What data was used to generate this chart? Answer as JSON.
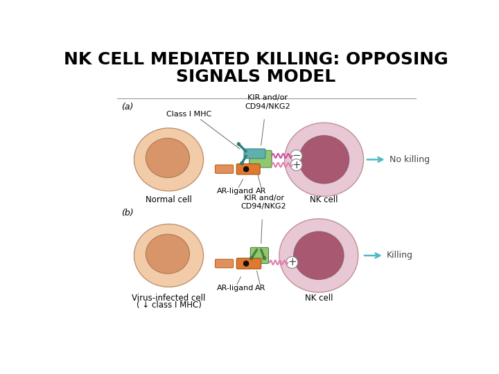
{
  "title_line1": "NK CELL MEDIATED KILLING: OPPOSING",
  "title_line2": "SIGNALS MODEL",
  "title_fontsize": 18,
  "title_fontweight": "bold",
  "bg_color": "#ffffff",
  "panel_a_label": "(a)",
  "panel_b_label": "(b)",
  "no_killing_text": "No killing",
  "killing_text": "Killing",
  "normal_cell_text": "Normal cell",
  "virus_cell_text": "Virus-infected cell",
  "virus_cell_text2": "( ↓ class I MHC)",
  "nk_cell_text": "NK cell",
  "class_mhc_text": "Class I MHC",
  "kir_text": "KIR and/or\nCD94/NKG2",
  "ar_ligand_text": "AR-ligand",
  "ar_text": "AR",
  "arrow_color": "#4db8c8",
  "line_color": "#aaaaaa",
  "normal_cell_outer": "#f2cca8",
  "normal_cell_inner": "#d8956a",
  "normal_cell_edge": "#c09070",
  "nk_cell_outer": "#e8c8d4",
  "nk_cell_inner": "#a85870",
  "nk_cell_edge": "#c09090",
  "green_receptor": "#90c870",
  "teal_receptor": "#60b0b0",
  "orange_receptor": "#e07830",
  "orange_ligand": "#e0905a"
}
